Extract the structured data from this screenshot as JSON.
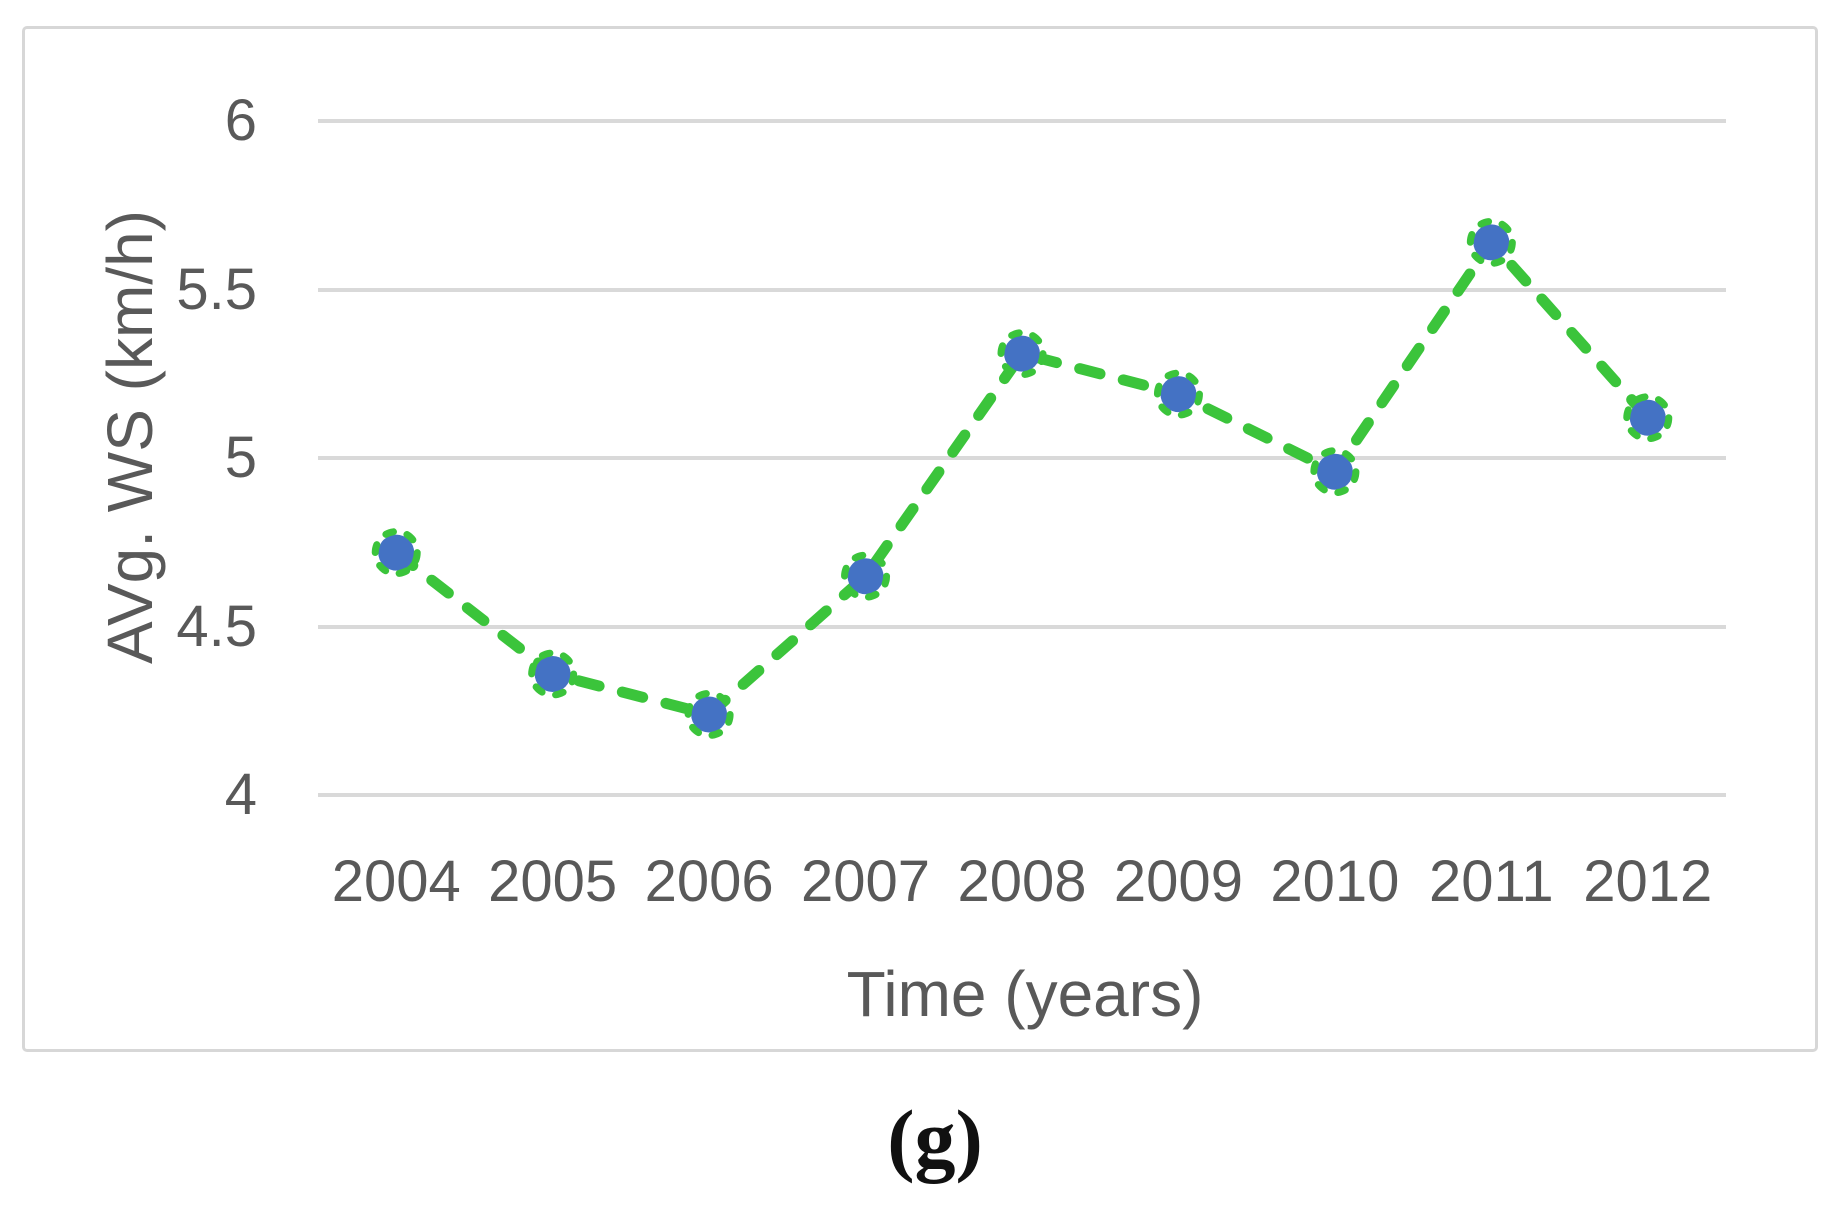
{
  "figure": {
    "caption": "(g)"
  },
  "chart_data": {
    "type": "line",
    "title": "",
    "xlabel": "Time (years)",
    "ylabel": "AVg. WS (km/h)",
    "categories": [
      "2004",
      "2005",
      "2006",
      "2007",
      "2008",
      "2009",
      "2010",
      "2011",
      "2012"
    ],
    "values": [
      4.72,
      4.36,
      4.24,
      4.65,
      5.31,
      5.19,
      4.96,
      5.64,
      5.12
    ],
    "ylim": [
      4,
      6
    ],
    "yticks": [
      "6",
      "5.5",
      "5",
      "4.5",
      "4"
    ],
    "grid": "horizontal",
    "legend": "none",
    "line_style": "dashed",
    "marker": "circle-with-dashed-ring",
    "colors": {
      "line": "#3bc43b",
      "marker_fill": "#4472c4",
      "gridline": "#d9d9d9",
      "axis_text": "#595959",
      "panel_border": "#d7d7d7",
      "caption_text": "#111111"
    }
  }
}
